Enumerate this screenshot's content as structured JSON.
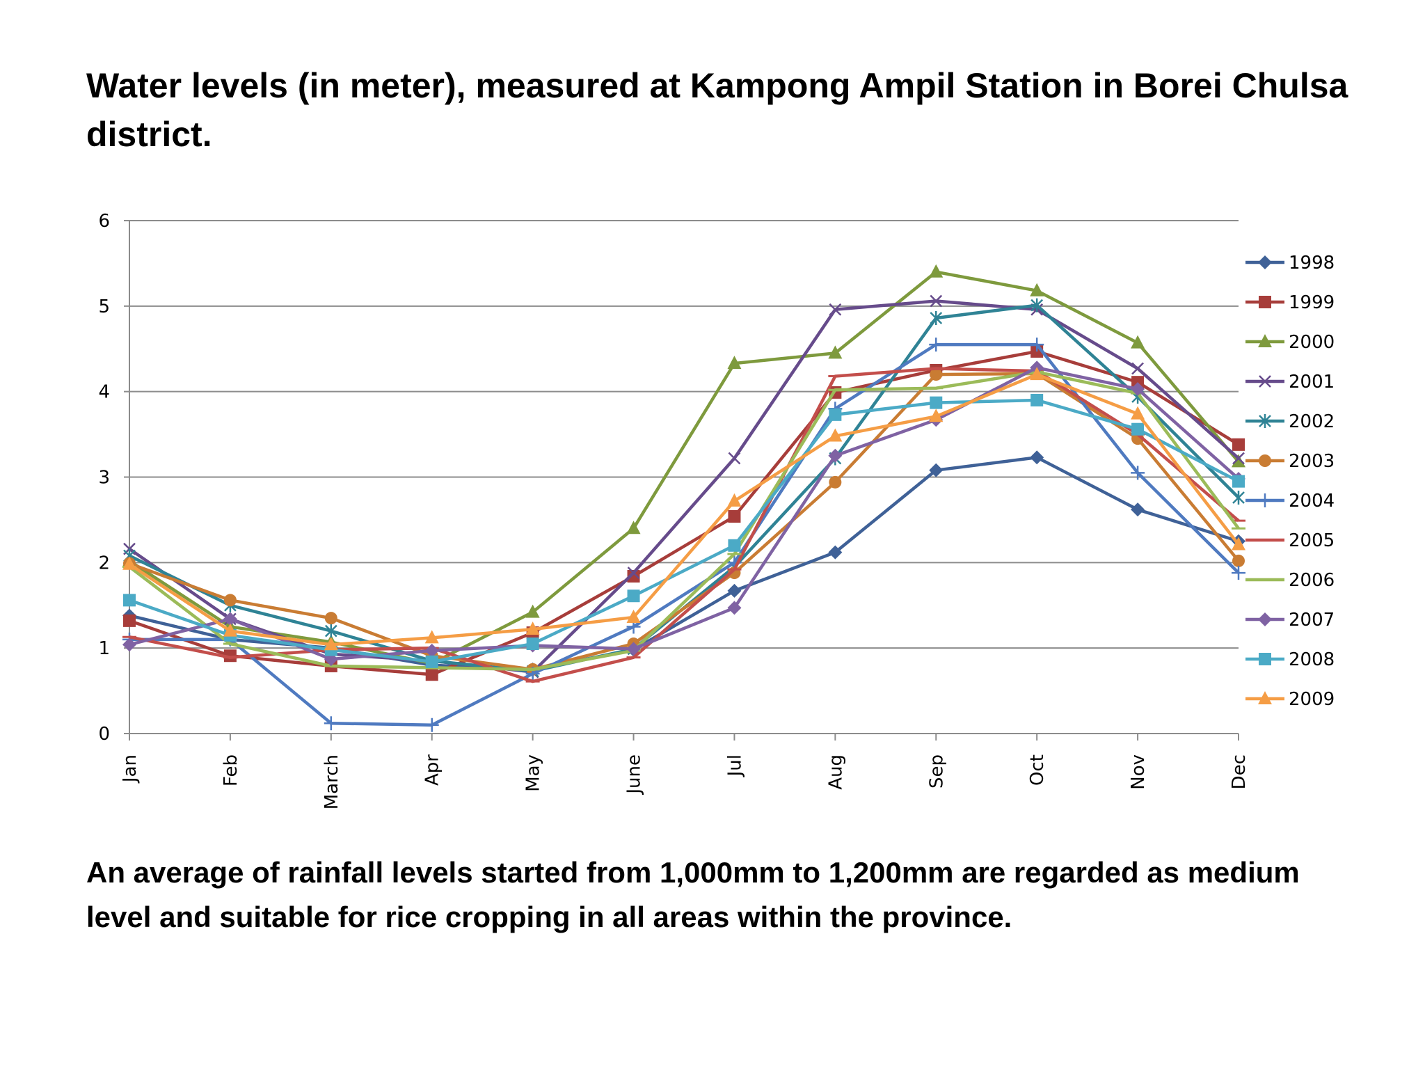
{
  "slide": {
    "title": "Water levels (in meter), measured at Kampong Ampil Station in Borei Chulsa district.",
    "footer": "An average of rainfall levels started from 1,000mm to 1,200mm are regarded as medium level and suitable for rice cropping in all areas within the province."
  },
  "chart_data": {
    "type": "line",
    "title": "",
    "xlabel": "",
    "ylabel": "",
    "categories": [
      "Jan",
      "Feb",
      "March",
      "Apr",
      "May",
      "June",
      "Jul",
      "Aug",
      "Sep",
      "Oct",
      "Nov",
      "Dec"
    ],
    "ylim": [
      0,
      6
    ],
    "yticks": [
      0,
      1,
      2,
      3,
      4,
      5,
      6
    ],
    "grid": "horizontal",
    "legend": "right",
    "series": [
      {
        "name": "1998",
        "color": "#3F6197",
        "marker": "diamond",
        "values": [
          1.38,
          1.1,
          1.0,
          0.8,
          0.75,
          0.98,
          1.67,
          2.12,
          3.08,
          3.23,
          2.62,
          2.25
        ]
      },
      {
        "name": "1999",
        "color": "#A73D3A",
        "marker": "square",
        "values": [
          1.32,
          0.91,
          0.79,
          0.69,
          1.18,
          1.84,
          2.54,
          3.99,
          4.25,
          4.47,
          4.11,
          3.38
        ]
      },
      {
        "name": "2000",
        "color": "#7E9A3D",
        "marker": "triangle",
        "values": [
          2.02,
          1.25,
          1.07,
          0.82,
          1.42,
          2.4,
          4.33,
          4.45,
          5.4,
          5.18,
          4.57,
          3.18
        ]
      },
      {
        "name": "2001",
        "color": "#664B8B",
        "marker": "x",
        "values": [
          2.16,
          1.34,
          0.93,
          0.85,
          0.72,
          1.88,
          3.22,
          4.96,
          5.06,
          4.96,
          4.27,
          3.22
        ]
      },
      {
        "name": "2002",
        "color": "#2F8395",
        "marker": "asterisk",
        "values": [
          2.08,
          1.5,
          1.2,
          0.85,
          0.73,
          0.99,
          1.95,
          3.22,
          4.86,
          5.01,
          3.94,
          2.76
        ]
      },
      {
        "name": "2003",
        "color": "#C97C33",
        "marker": "circle",
        "values": [
          1.99,
          1.56,
          1.35,
          0.91,
          0.75,
          1.05,
          1.88,
          2.94,
          4.2,
          4.21,
          3.45,
          2.02
        ]
      },
      {
        "name": "2004",
        "color": "#4F7AC0",
        "marker": "plus",
        "values": [
          1.1,
          1.1,
          0.12,
          0.1,
          0.7,
          1.25,
          2.0,
          3.8,
          4.55,
          4.55,
          3.05,
          1.88
        ]
      },
      {
        "name": "2005",
        "color": "#C34E4B",
        "marker": "dash",
        "values": [
          1.13,
          0.89,
          0.98,
          1.0,
          0.61,
          0.89,
          1.92,
          4.18,
          4.27,
          4.24,
          3.5,
          2.49
        ]
      },
      {
        "name": "2006",
        "color": "#9BBB59",
        "marker": "dash",
        "values": [
          1.95,
          1.05,
          0.79,
          0.77,
          0.75,
          0.97,
          2.1,
          4.02,
          4.04,
          4.23,
          3.98,
          2.4
        ]
      },
      {
        "name": "2007",
        "color": "#7F62A3",
        "marker": "diamond",
        "values": [
          1.04,
          1.34,
          0.87,
          0.97,
          1.03,
          0.99,
          1.47,
          3.25,
          3.67,
          4.28,
          4.03,
          2.98
        ]
      },
      {
        "name": "2008",
        "color": "#4BAAC6",
        "marker": "square",
        "values": [
          1.56,
          1.15,
          0.98,
          0.84,
          1.05,
          1.61,
          2.2,
          3.73,
          3.87,
          3.9,
          3.56,
          2.95
        ]
      },
      {
        "name": "2009",
        "color": "#F59D45",
        "marker": "triangle",
        "values": [
          1.98,
          1.2,
          1.04,
          1.12,
          1.22,
          1.36,
          2.72,
          3.48,
          3.71,
          4.2,
          3.74,
          2.21
        ]
      }
    ]
  }
}
